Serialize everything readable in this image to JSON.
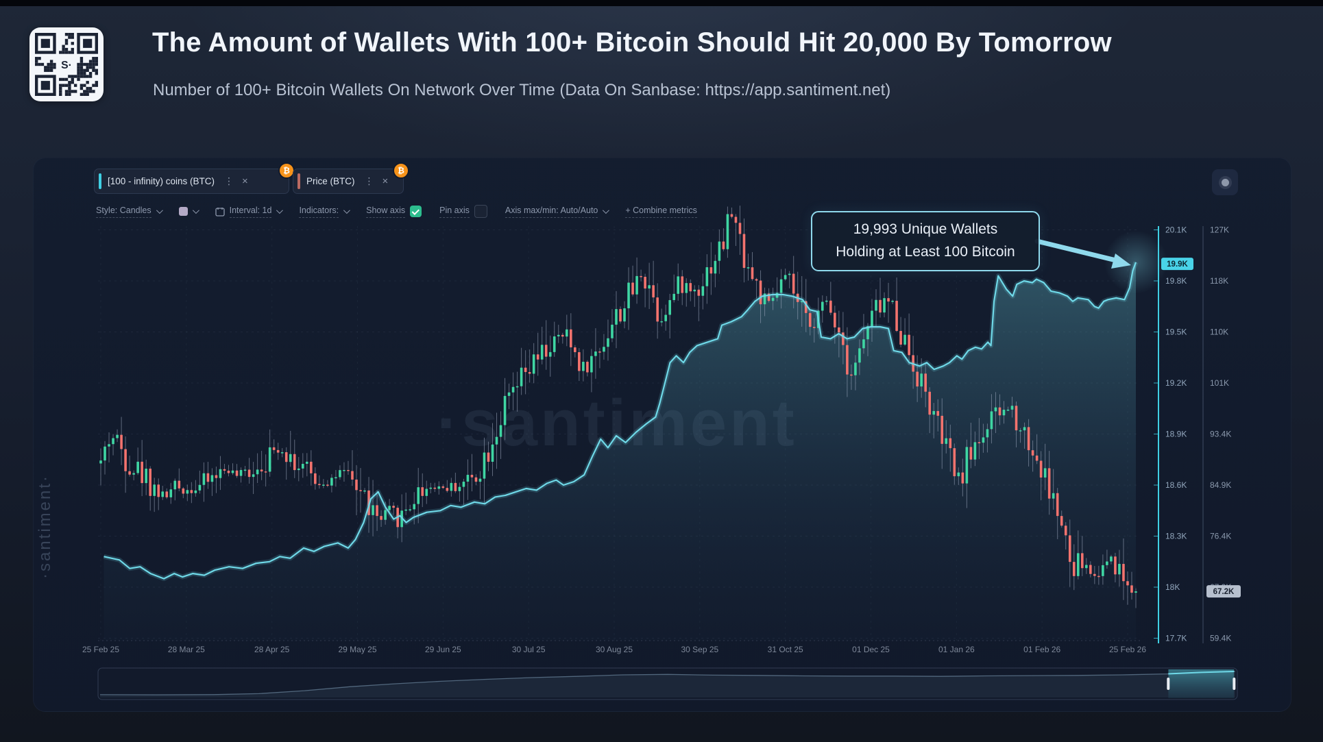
{
  "header": {
    "title": "The Amount of Wallets With 100+ Bitcoin Should Hit 20,000 By Tomorrow",
    "subtitle": "Number of 100+ Bitcoin Wallets On Network Over Time (Data On Sanbase: https://app.santiment.net)",
    "qr_center_label": "S·"
  },
  "metrics": [
    {
      "label": "[100 - infinity) coins (BTC)",
      "accent": "#3fcfe3",
      "asset_badge": "₿",
      "kebab": "⋮",
      "close": "×"
    },
    {
      "label": "Price (BTC)",
      "accent": "#bb6a62",
      "asset_badge": "₿",
      "kebab": "⋮",
      "close": "×"
    }
  ],
  "toolbar": {
    "style_label": "Style: Candles",
    "interval_label": "Interval: 1d",
    "indicators_label": "Indicators:",
    "show_axis_label": "Show axis",
    "show_axis_checked": true,
    "pin_axis_label": "Pin axis",
    "pin_axis_checked": false,
    "axis_maxmin_label": "Axis max/min: Auto/Auto",
    "combine_label": "+  Combine metrics"
  },
  "annotation": {
    "line1": "19,993 Unique Wallets",
    "line2": "Holding at Least 100 Bitcoin"
  },
  "watermark": {
    "center": "·santiment",
    "side": "·santiment·"
  },
  "chart_data": {
    "type": "candlestick+area",
    "x_tick_labels": [
      "25 Feb 25",
      "28 Mar 25",
      "28 Apr 25",
      "29 May 25",
      "29 Jun 25",
      "30 Jul 25",
      "30 Aug 25",
      "30 Sep 25",
      "31 Oct 25",
      "01 Dec 25",
      "01 Jan 26",
      "01 Feb 26",
      "25 Feb 26"
    ],
    "grid": true,
    "legend_position": "top-left-chips",
    "left_value_axis": {
      "title": "[100 - infinity) coins (BTC)",
      "color": "#3fcfe3",
      "tick_labels": [
        "20.1K",
        "19.8K",
        "19.5K",
        "19.2K",
        "18.9K",
        "18.6K",
        "18.3K",
        "18K",
        "17.7K"
      ],
      "tick_values": [
        20.1,
        19.8,
        19.5,
        19.2,
        18.9,
        18.6,
        18.3,
        18.0,
        17.7
      ],
      "current_label": "19.9K",
      "current_value": 19.9
    },
    "right_value_axis": {
      "title": "Price (BTC)",
      "tick_labels": [
        "127K",
        "118K",
        "110K",
        "101K",
        "93.4K",
        "84.9K",
        "76.4K",
        "67.9K",
        "59.4K"
      ],
      "tick_values": [
        127,
        118,
        110,
        101,
        93.4,
        84.9,
        76.4,
        67.9,
        59.4
      ],
      "current_label": "67.2K",
      "current_value": 67.2
    },
    "wallet_series": {
      "name": "[100 - infinity) coins (BTC)",
      "unit": "thousand wallets",
      "color": "#6fd9e8",
      "points": [
        [
          0.003,
          18.18
        ],
        [
          0.018,
          18.16
        ],
        [
          0.028,
          18.11
        ],
        [
          0.038,
          18.12
        ],
        [
          0.048,
          18.08
        ],
        [
          0.061,
          18.05
        ],
        [
          0.071,
          18.08
        ],
        [
          0.079,
          18.06
        ],
        [
          0.089,
          18.08
        ],
        [
          0.1,
          18.07
        ],
        [
          0.11,
          18.1
        ],
        [
          0.124,
          18.12
        ],
        [
          0.137,
          18.11
        ],
        [
          0.15,
          18.14
        ],
        [
          0.163,
          18.15
        ],
        [
          0.173,
          18.18
        ],
        [
          0.183,
          18.17
        ],
        [
          0.196,
          18.23
        ],
        [
          0.206,
          18.21
        ],
        [
          0.216,
          18.24
        ],
        [
          0.229,
          18.26
        ],
        [
          0.239,
          18.23
        ],
        [
          0.246,
          18.28
        ],
        [
          0.254,
          18.38
        ],
        [
          0.261,
          18.52
        ],
        [
          0.268,
          18.56
        ],
        [
          0.275,
          18.47
        ],
        [
          0.283,
          18.4
        ],
        [
          0.289,
          18.42
        ],
        [
          0.295,
          18.38
        ],
        [
          0.302,
          18.41
        ],
        [
          0.315,
          18.44
        ],
        [
          0.328,
          18.45
        ],
        [
          0.338,
          18.48
        ],
        [
          0.348,
          18.47
        ],
        [
          0.361,
          18.5
        ],
        [
          0.371,
          18.49
        ],
        [
          0.381,
          18.53
        ],
        [
          0.391,
          18.54
        ],
        [
          0.401,
          18.56
        ],
        [
          0.411,
          18.58
        ],
        [
          0.421,
          18.57
        ],
        [
          0.431,
          18.61
        ],
        [
          0.44,
          18.63
        ],
        [
          0.447,
          18.6
        ],
        [
          0.457,
          18.62
        ],
        [
          0.467,
          18.66
        ],
        [
          0.475,
          18.77
        ],
        [
          0.483,
          18.87
        ],
        [
          0.49,
          18.82
        ],
        [
          0.498,
          18.89
        ],
        [
          0.507,
          18.85
        ],
        [
          0.517,
          18.91
        ],
        [
          0.527,
          18.96
        ],
        [
          0.536,
          19.0
        ],
        [
          0.54,
          19.08
        ],
        [
          0.545,
          19.2
        ],
        [
          0.55,
          19.32
        ],
        [
          0.556,
          19.36
        ],
        [
          0.563,
          19.32
        ],
        [
          0.569,
          19.38
        ],
        [
          0.576,
          19.42
        ],
        [
          0.586,
          19.44
        ],
        [
          0.596,
          19.46
        ],
        [
          0.6,
          19.54
        ],
        [
          0.609,
          19.56
        ],
        [
          0.619,
          19.59
        ],
        [
          0.625,
          19.63
        ],
        [
          0.632,
          19.68
        ],
        [
          0.639,
          19.71
        ],
        [
          0.649,
          19.72
        ],
        [
          0.659,
          19.72
        ],
        [
          0.668,
          19.71
        ],
        [
          0.678,
          19.69
        ],
        [
          0.685,
          19.63
        ],
        [
          0.692,
          19.62
        ],
        [
          0.696,
          19.47
        ],
        [
          0.705,
          19.46
        ],
        [
          0.713,
          19.49
        ],
        [
          0.721,
          19.46
        ],
        [
          0.728,
          19.47
        ],
        [
          0.736,
          19.52
        ],
        [
          0.744,
          19.53
        ],
        [
          0.753,
          19.53
        ],
        [
          0.761,
          19.52
        ],
        [
          0.766,
          19.39
        ],
        [
          0.774,
          19.38
        ],
        [
          0.781,
          19.32
        ],
        [
          0.791,
          19.3
        ],
        [
          0.798,
          19.32
        ],
        [
          0.805,
          19.28
        ],
        [
          0.814,
          19.3
        ],
        [
          0.82,
          19.32
        ],
        [
          0.827,
          19.36
        ],
        [
          0.832,
          19.34
        ],
        [
          0.838,
          19.39
        ],
        [
          0.845,
          19.41
        ],
        [
          0.851,
          19.4
        ],
        [
          0.857,
          19.44
        ],
        [
          0.86,
          19.42
        ],
        [
          0.863,
          19.68
        ],
        [
          0.867,
          19.83
        ],
        [
          0.875,
          19.75
        ],
        [
          0.881,
          19.71
        ],
        [
          0.885,
          19.78
        ],
        [
          0.892,
          19.8
        ],
        [
          0.9,
          19.79
        ],
        [
          0.904,
          19.81
        ],
        [
          0.911,
          19.79
        ],
        [
          0.918,
          19.74
        ],
        [
          0.926,
          19.73
        ],
        [
          0.934,
          19.71
        ],
        [
          0.939,
          19.68
        ],
        [
          0.944,
          19.7
        ],
        [
          0.954,
          19.69
        ],
        [
          0.96,
          19.65
        ],
        [
          0.964,
          19.64
        ],
        [
          0.969,
          19.68
        ],
        [
          0.973,
          19.69
        ],
        [
          0.981,
          19.7
        ],
        [
          0.989,
          19.69
        ],
        [
          0.994,
          19.76
        ],
        [
          0.997,
          19.86
        ],
        [
          1.0,
          19.91
        ]
      ]
    },
    "price_series": {
      "name": "Price (BTC)",
      "unit": "thousand USD",
      "up_color": "#3fd6a3",
      "down_color": "#f3736e",
      "wick_color": "rgba(158,170,192,0.55)",
      "candle_count": 252,
      "close_anchors": [
        [
          0.0,
          88.5
        ],
        [
          0.008,
          92.5
        ],
        [
          0.015,
          93.0
        ],
        [
          0.022,
          90.0
        ],
        [
          0.032,
          88.0
        ],
        [
          0.042,
          86.5
        ],
        [
          0.052,
          84.5
        ],
        [
          0.062,
          82.8
        ],
        [
          0.072,
          84.8
        ],
        [
          0.082,
          84.0
        ],
        [
          0.092,
          84.6
        ],
        [
          0.1,
          85.2
        ],
        [
          0.112,
          86.8
        ],
        [
          0.122,
          87.6
        ],
        [
          0.132,
          86.4
        ],
        [
          0.142,
          87.2
        ],
        [
          0.152,
          88.2
        ],
        [
          0.162,
          89.6
        ],
        [
          0.172,
          91.2
        ],
        [
          0.182,
          90.0
        ],
        [
          0.192,
          88.0
        ],
        [
          0.202,
          86.6
        ],
        [
          0.212,
          85.2
        ],
        [
          0.222,
          85.8
        ],
        [
          0.232,
          87.0
        ],
        [
          0.242,
          85.4
        ],
        [
          0.252,
          83.8
        ],
        [
          0.262,
          80.5
        ],
        [
          0.27,
          78.6
        ],
        [
          0.278,
          80.8
        ],
        [
          0.288,
          79.2
        ],
        [
          0.298,
          81.8
        ],
        [
          0.31,
          84.2
        ],
        [
          0.322,
          84.8
        ],
        [
          0.334,
          84.4
        ],
        [
          0.346,
          84.9
        ],
        [
          0.358,
          85.8
        ],
        [
          0.368,
          88.5
        ],
        [
          0.378,
          92.5
        ],
        [
          0.39,
          97.5
        ],
        [
          0.4,
          100.5
        ],
        [
          0.412,
          103.5
        ],
        [
          0.424,
          106.0
        ],
        [
          0.436,
          108.5
        ],
        [
          0.448,
          109.9
        ],
        [
          0.458,
          107.0
        ],
        [
          0.468,
          104.0
        ],
        [
          0.478,
          106.5
        ],
        [
          0.49,
          110.5
        ],
        [
          0.502,
          114.0
        ],
        [
          0.512,
          116.8
        ],
        [
          0.522,
          120.0
        ],
        [
          0.53,
          118.5
        ],
        [
          0.54,
          112.5
        ],
        [
          0.55,
          115.5
        ],
        [
          0.56,
          118.5
        ],
        [
          0.572,
          117.0
        ],
        [
          0.582,
          119.5
        ],
        [
          0.592,
          122.5
        ],
        [
          0.602,
          125.5
        ],
        [
          0.608,
          131.0
        ],
        [
          0.614,
          127.5
        ],
        [
          0.62,
          124.0
        ],
        [
          0.628,
          120.0
        ],
        [
          0.636,
          117.0
        ],
        [
          0.644,
          114.5
        ],
        [
          0.652,
          116.5
        ],
        [
          0.66,
          119.5
        ],
        [
          0.668,
          117.5
        ],
        [
          0.676,
          113.5
        ],
        [
          0.684,
          111.5
        ],
        [
          0.692,
          113.0
        ],
        [
          0.7,
          115.5
        ],
        [
          0.708,
          113.5
        ],
        [
          0.716,
          109.5
        ],
        [
          0.724,
          103.5
        ],
        [
          0.732,
          106.5
        ],
        [
          0.74,
          110.5
        ],
        [
          0.75,
          114.5
        ],
        [
          0.758,
          116.0
        ],
        [
          0.766,
          114.0
        ],
        [
          0.774,
          110.0
        ],
        [
          0.782,
          106.5
        ],
        [
          0.79,
          103.0
        ],
        [
          0.798,
          99.5
        ],
        [
          0.806,
          95.5
        ],
        [
          0.814,
          92.0
        ],
        [
          0.822,
          88.5
        ],
        [
          0.83,
          85.8
        ],
        [
          0.838,
          89.5
        ],
        [
          0.846,
          92.5
        ],
        [
          0.854,
          94.0
        ],
        [
          0.862,
          95.5
        ],
        [
          0.87,
          97.0
        ],
        [
          0.878,
          97.8
        ],
        [
          0.886,
          96.0
        ],
        [
          0.894,
          93.0
        ],
        [
          0.902,
          90.0
        ],
        [
          0.91,
          87.0
        ],
        [
          0.918,
          83.5
        ],
        [
          0.926,
          79.5
        ],
        [
          0.934,
          73.5
        ],
        [
          0.94,
          69.5
        ],
        [
          0.946,
          72.5
        ],
        [
          0.953,
          71.0
        ],
        [
          0.96,
          69.5
        ],
        [
          0.968,
          71.5
        ],
        [
          0.976,
          73.2
        ],
        [
          0.984,
          70.5
        ],
        [
          0.992,
          68.5
        ],
        [
          1.0,
          67.2
        ]
      ]
    }
  },
  "minimap": {
    "points": [
      [
        0,
        0.06
      ],
      [
        0.05,
        0.05
      ],
      [
        0.1,
        0.06
      ],
      [
        0.14,
        0.1
      ],
      [
        0.18,
        0.22
      ],
      [
        0.22,
        0.38
      ],
      [
        0.26,
        0.5
      ],
      [
        0.3,
        0.6
      ],
      [
        0.34,
        0.68
      ],
      [
        0.38,
        0.75
      ],
      [
        0.42,
        0.8
      ],
      [
        0.46,
        0.86
      ],
      [
        0.5,
        0.88
      ],
      [
        0.54,
        0.85
      ],
      [
        0.58,
        0.84
      ],
      [
        0.62,
        0.82
      ],
      [
        0.66,
        0.81
      ],
      [
        0.7,
        0.81
      ],
      [
        0.74,
        0.8
      ],
      [
        0.78,
        0.82
      ],
      [
        0.82,
        0.83
      ],
      [
        0.86,
        0.84
      ],
      [
        0.9,
        0.86
      ],
      [
        0.94,
        0.9
      ],
      [
        0.97,
        0.96
      ],
      [
        1.0,
        1.0
      ]
    ],
    "selection": [
      0.941,
      0.999
    ]
  }
}
